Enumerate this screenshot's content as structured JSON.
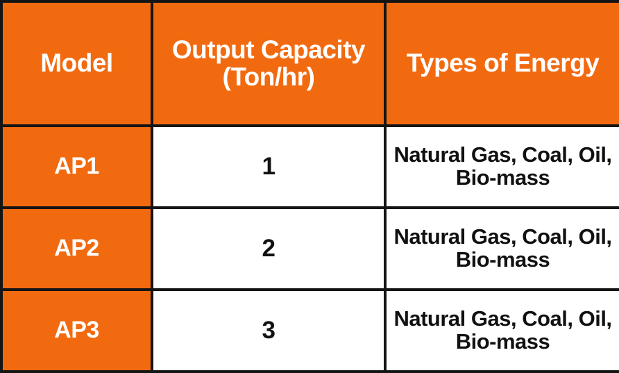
{
  "table": {
    "columns": [
      "Model",
      "Output Capacity (Ton/hr)",
      "Types of Energy"
    ],
    "rows": [
      [
        "AP1",
        1,
        "Natural Gas, Coal, Oil, Bio-mass"
      ],
      [
        "AP2",
        2,
        "Natural Gas, Coal, Oil, Bio-mass"
      ],
      [
        "AP3",
        3,
        "Natural Gas, Coal, Oil, Bio-mass"
      ]
    ]
  }
}
